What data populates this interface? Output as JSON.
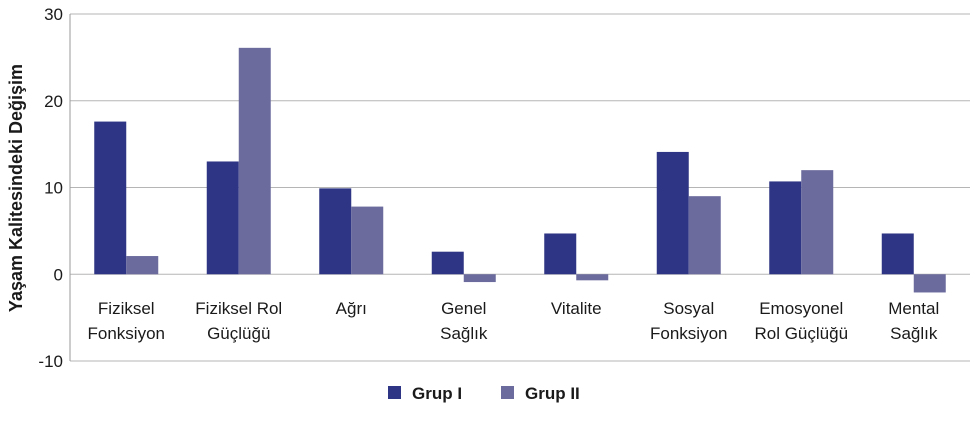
{
  "chart_data": {
    "type": "bar",
    "ylabel": "Yaşam Kalitesindeki Değişim",
    "ylim": [
      -10,
      30
    ],
    "yticks": [
      -10,
      0,
      10,
      20,
      30
    ],
    "grid": true,
    "legend_position": "bottom",
    "categories": [
      [
        "Fiziksel",
        "Fonksiyon"
      ],
      [
        "Fiziksel Rol",
        "Güçlüğü"
      ],
      [
        "Ağrı"
      ],
      [
        "Genel",
        "Sağlık"
      ],
      [
        "Vitalite"
      ],
      [
        "Sosyal",
        "Fonksiyon"
      ],
      [
        "Emosyonel",
        "Rol Güçlüğü"
      ],
      [
        "Mental",
        "Sağlık"
      ]
    ],
    "series": [
      {
        "name": "Grup I",
        "color": "#2e3584",
        "values": [
          17.6,
          13.0,
          9.9,
          2.6,
          4.7,
          14.1,
          10.7,
          4.7
        ]
      },
      {
        "name": "Grup II",
        "color": "#6b6b9e",
        "values": [
          2.1,
          26.1,
          7.8,
          -0.9,
          -0.7,
          9.0,
          12.0,
          -2.1
        ]
      }
    ]
  }
}
